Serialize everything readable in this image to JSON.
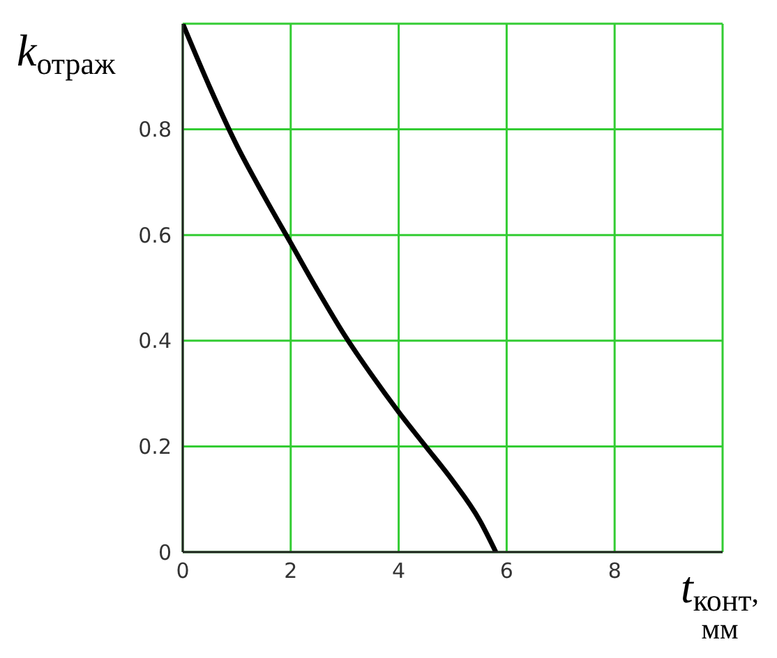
{
  "chart_data": {
    "type": "line",
    "xlabel": "t$_{конт}$,\nмм",
    "ylabel": "k$_{отраж}$",
    "x": [
      0,
      0.5,
      1,
      1.5,
      2,
      2.5,
      3,
      3.5,
      4,
      4.5,
      5,
      5.5,
      5.8
    ],
    "series": [
      {
        "color": "#000000",
        "values": [
          1,
          0.88,
          0.77,
          0.675,
          0.585,
          0.495,
          0.41,
          0.335,
          0.265,
          0.2,
          0.135,
          0.06,
          0
        ]
      }
    ],
    "xlim": [
      0,
      10
    ],
    "ylim": [
      0,
      1
    ],
    "xticks": [
      0,
      2,
      4,
      6,
      8,
      {
        "value": 10,
        "label": null
      }
    ],
    "yticks": [
      0,
      0.2,
      0.4,
      0.6,
      0.8,
      {
        "value": 1,
        "label": null
      }
    ],
    "grid": true,
    "marker": "none",
    "line_style": "solid"
  }
}
